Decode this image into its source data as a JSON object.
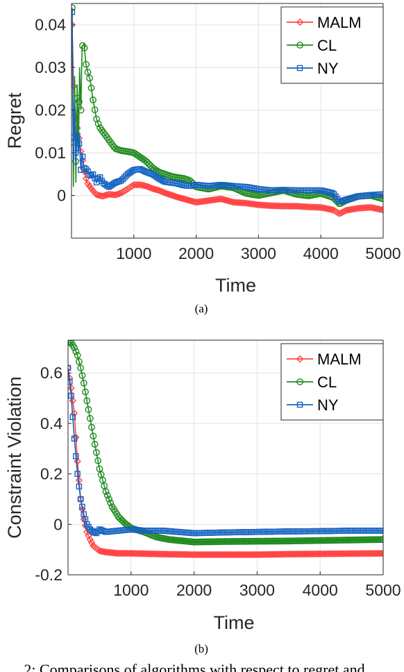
{
  "chart_data": [
    {
      "type": "line",
      "caption": "(a)",
      "xlabel": "Time",
      "ylabel": "Regret",
      "xlim": [
        0,
        5000
      ],
      "ylim": [
        -0.01,
        0.045
      ],
      "xticks": [
        "1000",
        "2000",
        "3000",
        "4000",
        "5000"
      ],
      "yticks": [
        "0",
        "0.01",
        "0.02",
        "0.03",
        "0.04"
      ],
      "grid": true,
      "legend_position": "top-right",
      "series": [
        {
          "name": "MALM",
          "color": "#ff4444",
          "marker": "diamond",
          "x": [
            10,
            30,
            50,
            70,
            90,
            110,
            140,
            170,
            200,
            250,
            300,
            350,
            400,
            500,
            600,
            700,
            800,
            900,
            1000,
            1100,
            1200,
            1300,
            1400,
            1500,
            1600,
            1700,
            1800,
            1900,
            2000,
            2200,
            2400,
            2500,
            2600,
            2800,
            3000,
            3200,
            3400,
            3600,
            3800,
            4000,
            4200,
            4300,
            4400,
            4600,
            4800,
            5000
          ],
          "y": [
            0.04,
            0.028,
            0.022,
            0.018,
            0.016,
            0.015,
            0.011,
            0.009,
            0.006,
            0.003,
            0.002,
            0.001,
            0.0002,
            -0.0002,
            0.0003,
            0.0001,
            0.0006,
            0.0015,
            0.0025,
            0.0025,
            0.0022,
            0.0016,
            0.0012,
            0.0006,
            0.0001,
            -0.0004,
            -0.0008,
            -0.0012,
            -0.0016,
            -0.0012,
            -0.0008,
            -0.0012,
            -0.0016,
            -0.0018,
            -0.0022,
            -0.0024,
            -0.0025,
            -0.0025,
            -0.0027,
            -0.0028,
            -0.0034,
            -0.0043,
            -0.0035,
            -0.003,
            -0.0028,
            -0.0034
          ]
        },
        {
          "name": "CL",
          "color": "#1f8a1f",
          "marker": "circle",
          "x": [
            10,
            30,
            50,
            70,
            90,
            110,
            130,
            150,
            170,
            200,
            230,
            260,
            300,
            350,
            400,
            450,
            500,
            600,
            700,
            800,
            900,
            1000,
            1100,
            1200,
            1300,
            1400,
            1500,
            1600,
            1700,
            1800,
            1900,
            2000,
            2200,
            2400,
            2600,
            2800,
            3000,
            3200,
            3400,
            3600,
            3800,
            4000,
            4200,
            4300,
            4400,
            4600,
            4800,
            5000
          ],
          "y": [
            0.044,
            0.002,
            0.028,
            0.003,
            0.026,
            0.01,
            0.03,
            0.02,
            0.035,
            0.0355,
            0.031,
            0.029,
            0.027,
            0.022,
            0.018,
            0.016,
            0.015,
            0.013,
            0.011,
            0.0105,
            0.0103,
            0.01,
            0.009,
            0.008,
            0.0065,
            0.0055,
            0.005,
            0.0045,
            0.0042,
            0.004,
            0.0035,
            0.002,
            0.0015,
            0.0022,
            0.0018,
            0.0005,
            0.0,
            0.0006,
            0.0012,
            0.0003,
            -0.0001,
            0.0005,
            -0.0005,
            -0.002,
            -0.0012,
            -0.0002,
            0.0,
            -0.0008
          ]
        },
        {
          "name": "NY",
          "color": "#1462c2",
          "marker": "square",
          "x": [
            10,
            30,
            50,
            70,
            90,
            110,
            130,
            150,
            170,
            200,
            250,
            300,
            350,
            400,
            450,
            500,
            600,
            700,
            800,
            900,
            1000,
            1100,
            1200,
            1300,
            1400,
            1500,
            1600,
            1700,
            1800,
            1900,
            2000,
            2200,
            2400,
            2600,
            2800,
            3000,
            3200,
            3400,
            3600,
            3800,
            4000,
            4200,
            4300,
            4400,
            4600,
            4800,
            5000
          ],
          "y": [
            0.043,
            0.008,
            0.022,
            0.007,
            0.015,
            0.01,
            0.0135,
            0.006,
            0.01,
            0.0065,
            0.006,
            0.0045,
            0.005,
            0.003,
            0.0045,
            0.003,
            0.002,
            0.003,
            0.0035,
            0.005,
            0.006,
            0.0062,
            0.0055,
            0.005,
            0.004,
            0.0032,
            0.003,
            0.0028,
            0.0024,
            0.0022,
            0.0025,
            0.0022,
            0.0025,
            0.0022,
            0.002,
            0.0015,
            0.0012,
            0.0013,
            0.0012,
            0.0012,
            0.0012,
            0.0005,
            -0.0015,
            -0.001,
            -0.0002,
            0.0001,
            0.0003
          ]
        }
      ]
    },
    {
      "type": "line",
      "caption": "(b)",
      "xlabel": "Time",
      "ylabel": "Constraint Violation",
      "xlim": [
        0,
        5000
      ],
      "ylim": [
        -0.2,
        0.73
      ],
      "xticks": [
        "1000",
        "2000",
        "3000",
        "4000",
        "5000"
      ],
      "yticks": [
        "-0.2",
        "0",
        "0.2",
        "0.4",
        "0.6"
      ],
      "grid": true,
      "legend_position": "top-right",
      "series": [
        {
          "name": "MALM",
          "color": "#ff4444",
          "marker": "diamond",
          "x": [
            0,
            50,
            100,
            150,
            200,
            250,
            300,
            350,
            400,
            500,
            600,
            800,
            1000,
            1500,
            2000,
            2500,
            3000,
            3500,
            4000,
            4500,
            5000
          ],
          "y": [
            0.62,
            0.54,
            0.44,
            0.25,
            0.1,
            0.02,
            -0.03,
            -0.06,
            -0.085,
            -0.105,
            -0.11,
            -0.115,
            -0.115,
            -0.118,
            -0.12,
            -0.12,
            -0.12,
            -0.118,
            -0.117,
            -0.116,
            -0.115
          ]
        },
        {
          "name": "CL",
          "color": "#1f8a1f",
          "marker": "circle",
          "x": [
            0,
            50,
            100,
            150,
            200,
            250,
            300,
            350,
            400,
            500,
            600,
            700,
            800,
            900,
            1000,
            1200,
            1400,
            1600,
            2000,
            2500,
            3000,
            3500,
            4000,
            4500,
            5000
          ],
          "y": [
            0.72,
            0.72,
            0.7,
            0.67,
            0.62,
            0.56,
            0.49,
            0.42,
            0.35,
            0.22,
            0.13,
            0.07,
            0.03,
            0.005,
            -0.015,
            -0.03,
            -0.05,
            -0.06,
            -0.07,
            -0.068,
            -0.067,
            -0.066,
            -0.064,
            -0.062,
            -0.06
          ]
        },
        {
          "name": "NY",
          "color": "#1462c2",
          "marker": "square",
          "x": [
            0,
            50,
            100,
            150,
            200,
            250,
            300,
            350,
            400,
            450,
            500,
            600,
            800,
            1000,
            1200,
            1500,
            2000,
            2500,
            3000,
            3500,
            4000,
            4500,
            5000
          ],
          "y": [
            0.62,
            0.51,
            0.34,
            0.2,
            0.1,
            0.04,
            0.0,
            -0.02,
            -0.03,
            -0.035,
            -0.02,
            -0.03,
            -0.025,
            -0.02,
            -0.025,
            -0.025,
            -0.035,
            -0.032,
            -0.03,
            -0.028,
            -0.027,
            -0.025,
            -0.025
          ]
        }
      ]
    }
  ],
  "footer_text": "2: Comparisons of algorithms with respect to regret and"
}
